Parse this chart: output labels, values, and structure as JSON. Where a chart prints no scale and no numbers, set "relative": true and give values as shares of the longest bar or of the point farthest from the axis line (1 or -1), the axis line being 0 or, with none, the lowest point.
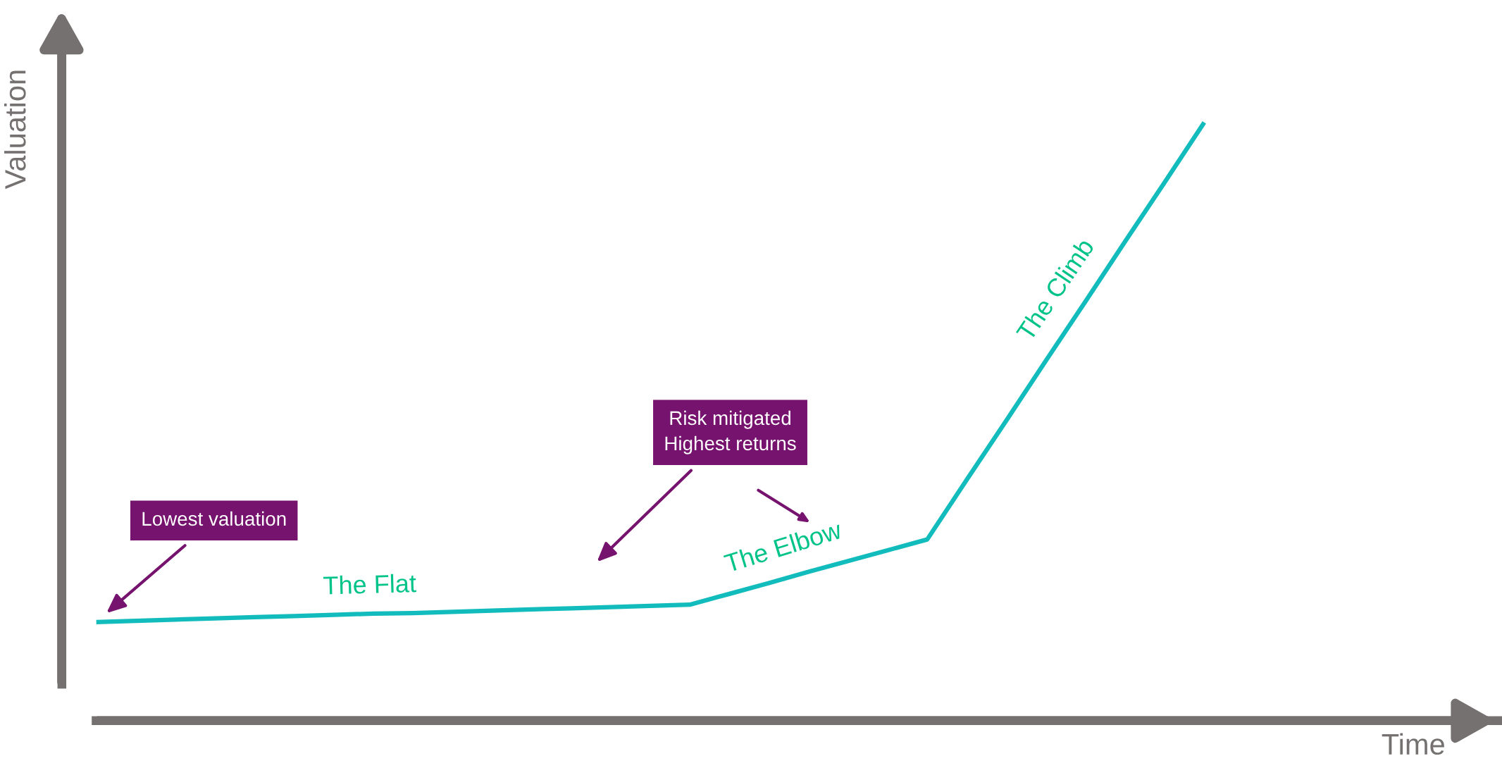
{
  "chart_data": {
    "type": "line",
    "relative": true,
    "ylabel": "Valuation",
    "categories": [
      null,
      null,
      null,
      null,
      null,
      null,
      null,
      null,
      null,
      null,
      null,
      null,
      null,
      null,
      null,
      null,
      null,
      null,
      null,
      null,
      null,
      null,
      null,
      null,
      null,
      null,
      null,
      null,
      null
    ],
    "series": [
      {
        "color": "#12bcbc",
        "values": [
          0.165,
          0.167,
          0.169,
          0.171,
          0.173,
          0.175,
          0.177,
          0.179,
          0.18,
          0.182,
          0.184,
          0.186,
          0.188,
          0.19,
          0.192,
          0.194,
          0.212,
          0.23,
          0.249,
          0.267,
          0.285,
          0.303,
          0.403,
          0.502,
          0.602,
          0.701,
          0.801,
          0.9,
          1
        ]
      }
    ],
    "annotations": [
      "The Flat",
      "The Elbow",
      "The Climb",
      "Lowest valuation",
      "Risk mitigated\nHighest returns",
      "Time"
    ]
  }
}
